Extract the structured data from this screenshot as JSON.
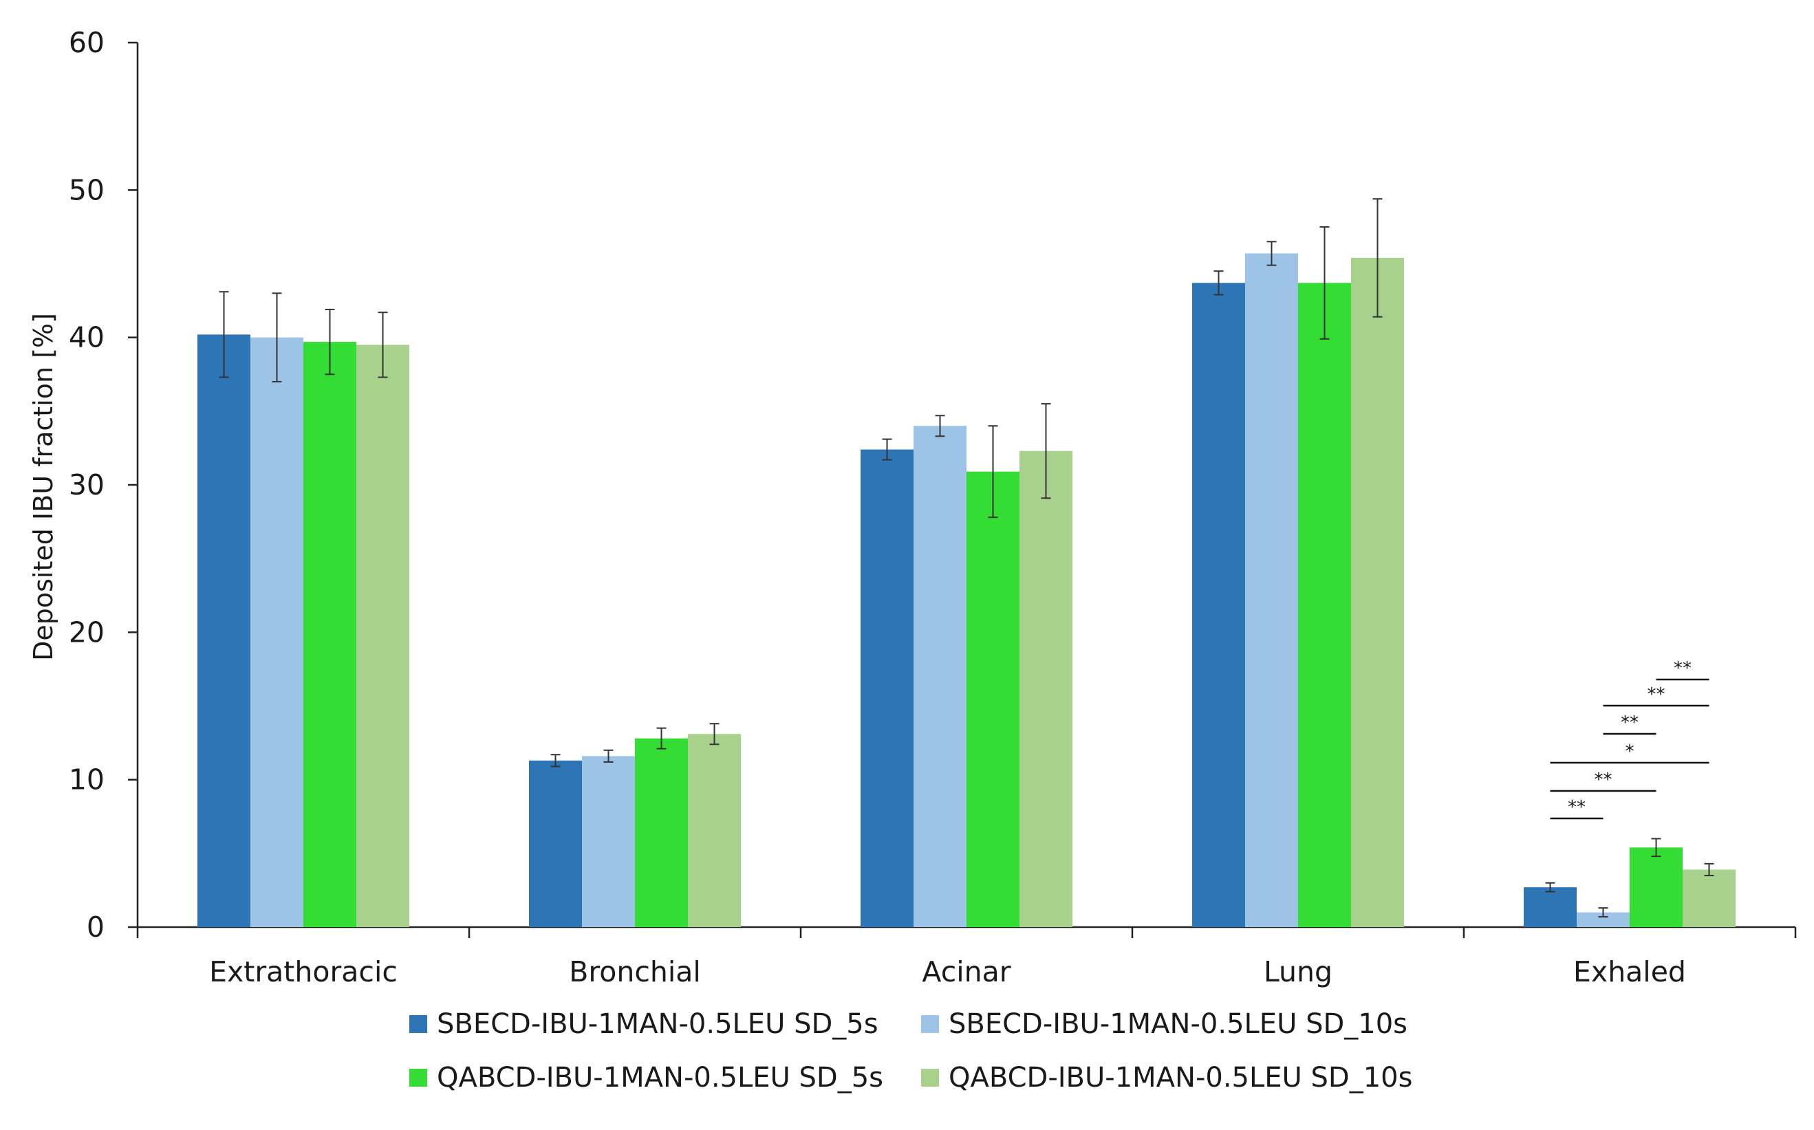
{
  "chart_data": {
    "type": "bar",
    "title": "",
    "xlabel": "",
    "ylabel": "Deposited IBU fraction  [%]",
    "ylim": [
      0,
      60
    ],
    "yticks": [
      0,
      10,
      20,
      30,
      40,
      50,
      60
    ],
    "grid": false,
    "legend_position": "bottom",
    "categories": [
      "Extrathoracic",
      "Bronchial",
      "Acinar",
      "Lung",
      "Exhaled"
    ],
    "series": [
      {
        "name": "SBECD-IBU-1MAN-0.5LEU SD_5s",
        "color": "#2e75b6",
        "values": [
          40.2,
          11.3,
          32.4,
          43.7,
          2.7
        ],
        "errors": [
          2.9,
          0.4,
          0.7,
          0.8,
          0.3
        ]
      },
      {
        "name": "SBECD-IBU-1MAN-0.5LEU SD_10s",
        "color": "#9dc3e6",
        "values": [
          40.0,
          11.6,
          34.0,
          45.7,
          1.0
        ],
        "errors": [
          3.0,
          0.4,
          0.7,
          0.8,
          0.3
        ]
      },
      {
        "name": "QABCD-IBU-1MAN-0.5LEU SD_5s",
        "color": "#33dd33",
        "values": [
          39.7,
          12.8,
          30.9,
          43.7,
          5.4
        ],
        "errors": [
          2.2,
          0.7,
          3.1,
          3.8,
          0.6
        ]
      },
      {
        "name": "QABCD-IBU-1MAN-0.5LEU SD_10s",
        "color": "#a9d18e",
        "values": [
          39.5,
          13.1,
          32.3,
          45.4,
          3.9
        ],
        "errors": [
          2.2,
          0.7,
          3.2,
          4.0,
          0.4
        ]
      }
    ],
    "significance": [
      {
        "category": "Exhaled",
        "from": 0,
        "to": 1,
        "label": "**"
      },
      {
        "category": "Exhaled",
        "from": 0,
        "to": 2,
        "label": "**"
      },
      {
        "category": "Exhaled",
        "from": 0,
        "to": 3,
        "label": "*"
      },
      {
        "category": "Exhaled",
        "from": 1,
        "to": 2,
        "label": "**"
      },
      {
        "category": "Exhaled",
        "from": 1,
        "to": 3,
        "label": "**"
      },
      {
        "category": "Exhaled",
        "from": 2,
        "to": 3,
        "label": "**"
      }
    ]
  }
}
